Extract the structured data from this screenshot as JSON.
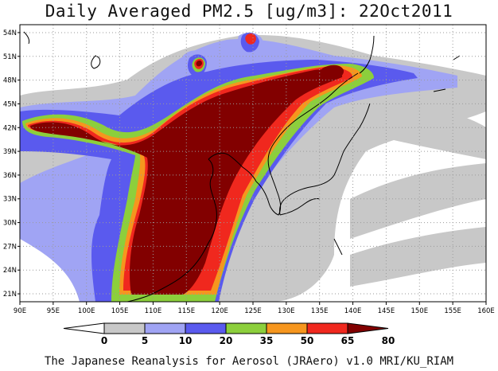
{
  "title": "Daily Averaged PM2.5 [ug/m3]: 22Oct2011",
  "credit": "The Japanese Reanalysis for Aerosol (JRAero) v1.0 MRI/KU_RIAM",
  "map": {
    "region": {
      "lon_min": 90,
      "lon_max": 160,
      "lat_min": 20,
      "lat_max": 55
    },
    "lon_ticks": [
      "90E",
      "95E",
      "100E",
      "105E",
      "110E",
      "115E",
      "120E",
      "125E",
      "130E",
      "135E",
      "140E",
      "145E",
      "150E",
      "155E",
      "160E"
    ],
    "lat_ticks": [
      "21N",
      "24N",
      "27N",
      "30N",
      "33N",
      "36N",
      "39N",
      "42N",
      "45N",
      "48N",
      "51N",
      "54N"
    ],
    "grid": "dotted"
  },
  "legend": {
    "labels": [
      "0",
      "5",
      "10",
      "20",
      "35",
      "50",
      "65",
      "80"
    ],
    "colors": [
      "#ffffff",
      "#c8c8c8",
      "#a0a4f4",
      "#5a5aee",
      "#8ccf3c",
      "#f6961e",
      "#f0281e",
      "#820000"
    ]
  }
}
